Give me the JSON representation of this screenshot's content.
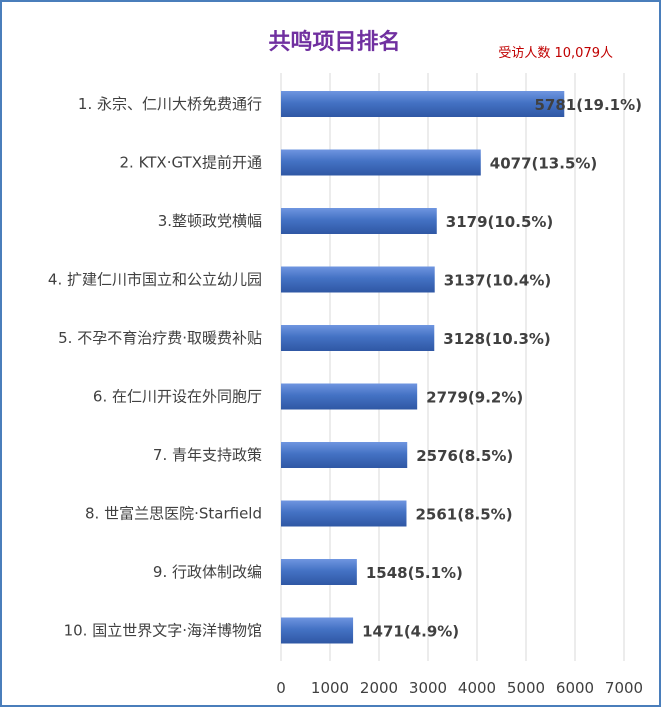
{
  "title": "共鸣项目排名",
  "respondents": "受访人数 10,079人",
  "colors": {
    "bar": "#4472c4",
    "bar_light": "#6f95e0",
    "bar_dark": "#2f57a4",
    "grid": "#d9d9d9",
    "title": "#7030a0",
    "respondents": "#c00000"
  },
  "chart_data": {
    "type": "bar",
    "orientation": "horizontal",
    "title": "共鸣项目排名",
    "xlim": [
      0,
      7000
    ],
    "ticks": [
      "0",
      "1000",
      "2000",
      "3000",
      "4000",
      "5000",
      "6000",
      "7000"
    ],
    "grid": "vertical",
    "categories": [
      "1. 永宗、仁川大桥免费通行",
      "2. KTX·GTX提前开通",
      "3.整顿政党横幅",
      "4. 扩建仁川市国立和公立幼儿园",
      "5. 不孕不育治疗费·取暖费补贴",
      "6. 在仁川开设在外同胞厅",
      "7. 青年支持政策",
      "8. 世富兰思医院·Starfield",
      "9. 行政体制改编",
      "10. 国立世界文字·海洋博物馆"
    ],
    "values": [
      5781,
      4077,
      3179,
      3137,
      3128,
      2779,
      2576,
      2561,
      1548,
      1471
    ],
    "data_labels": [
      "5781(19.1%)",
      "4077(13.5%)",
      "3179(10.5%)",
      "3137(10.4%)",
      "3128(10.3%)",
      "2779(9.2%)",
      "2576(8.5%)",
      "2561(8.5%)",
      "1548(5.1%)",
      "1471(4.9%)"
    ]
  }
}
